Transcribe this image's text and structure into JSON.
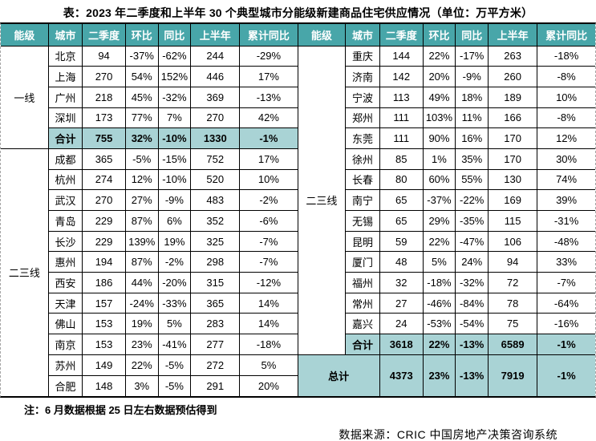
{
  "title": "表：2023 年二季度和上半年 30 个典型城市分能级新建商品住宅供应情况（单位：万平方米）",
  "note": "注：6 月数据根据 25 日左右数据预估得到",
  "source": "数据来源：CRIC 中国房地产决策咨询系统",
  "colors": {
    "header_bg": "#48A6A9",
    "header_text": "#FFFFFF",
    "highlight_bg": "#A9D3D5",
    "border": "#000000",
    "page_edge_dash": "#A6A6A6"
  },
  "chart_data": {
    "type": "table",
    "unit": "万平方米",
    "columns": [
      "能级",
      "城市",
      "二季度",
      "环比",
      "同比",
      "上半年",
      "累计同比"
    ],
    "left": {
      "groups": [
        {
          "tier": "一线",
          "rows": [
            {
              "city": "北京",
              "values": [
                "94",
                "-37%",
                "-62%",
                "244",
                "-29%"
              ]
            },
            {
              "city": "上海",
              "values": [
                "270",
                "54%",
                "152%",
                "446",
                "17%"
              ]
            },
            {
              "city": "广州",
              "values": [
                "218",
                "45%",
                "-32%",
                "369",
                "-13%"
              ]
            },
            {
              "city": "深圳",
              "values": [
                "173",
                "77%",
                "7%",
                "270",
                "42%"
              ]
            },
            {
              "city": "合计",
              "values": [
                "755",
                "32%",
                "-10%",
                "1330",
                "-1%"
              ],
              "highlight": true
            }
          ]
        },
        {
          "tier": "二三线",
          "rows": [
            {
              "city": "成都",
              "values": [
                "365",
                "-5%",
                "-15%",
                "752",
                "17%"
              ]
            },
            {
              "city": "杭州",
              "values": [
                "274",
                "12%",
                "-10%",
                "520",
                "10%"
              ]
            },
            {
              "city": "武汉",
              "values": [
                "270",
                "27%",
                "-9%",
                "483",
                "-2%"
              ]
            },
            {
              "city": "青岛",
              "values": [
                "229",
                "87%",
                "6%",
                "352",
                "-6%"
              ]
            },
            {
              "city": "长沙",
              "values": [
                "229",
                "139%",
                "19%",
                "325",
                "-7%"
              ]
            },
            {
              "city": "惠州",
              "values": [
                "194",
                "87%",
                "-2%",
                "298",
                "-7%"
              ]
            },
            {
              "city": "西安",
              "values": [
                "186",
                "44%",
                "-20%",
                "315",
                "-12%"
              ]
            },
            {
              "city": "天津",
              "values": [
                "157",
                "-24%",
                "-33%",
                "365",
                "14%"
              ]
            },
            {
              "city": "佛山",
              "values": [
                "153",
                "19%",
                "5%",
                "283",
                "14%"
              ]
            },
            {
              "city": "南京",
              "values": [
                "153",
                "23%",
                "-41%",
                "277",
                "-18%"
              ]
            },
            {
              "city": "苏州",
              "values": [
                "149",
                "22%",
                "-5%",
                "272",
                "5%"
              ]
            },
            {
              "city": "合肥",
              "values": [
                "148",
                "3%",
                "-5%",
                "291",
                "20%"
              ]
            }
          ]
        }
      ]
    },
    "right": {
      "groups": [
        {
          "tier": "二三线",
          "rows": [
            {
              "city": "重庆",
              "values": [
                "144",
                "22%",
                "-17%",
                "263",
                "-18%"
              ]
            },
            {
              "city": "济南",
              "values": [
                "142",
                "20%",
                "-9%",
                "260",
                "-8%"
              ]
            },
            {
              "city": "宁波",
              "values": [
                "113",
                "49%",
                "18%",
                "189",
                "10%"
              ]
            },
            {
              "city": "郑州",
              "values": [
                "111",
                "103%",
                "11%",
                "166",
                "-8%"
              ]
            },
            {
              "city": "东莞",
              "values": [
                "111",
                "90%",
                "16%",
                "170",
                "12%"
              ]
            },
            {
              "city": "徐州",
              "values": [
                "85",
                "1%",
                "35%",
                "170",
                "30%"
              ]
            },
            {
              "city": "长春",
              "values": [
                "80",
                "60%",
                "55%",
                "130",
                "74%"
              ]
            },
            {
              "city": "南宁",
              "values": [
                "65",
                "-37%",
                "-22%",
                "169",
                "39%"
              ]
            },
            {
              "city": "无锡",
              "values": [
                "65",
                "29%",
                "-35%",
                "115",
                "-31%"
              ]
            },
            {
              "city": "昆明",
              "values": [
                "59",
                "22%",
                "-47%",
                "106",
                "-48%"
              ]
            },
            {
              "city": "厦门",
              "values": [
                "48",
                "5%",
                "24%",
                "94",
                "33%"
              ]
            },
            {
              "city": "福州",
              "values": [
                "32",
                "-18%",
                "-32%",
                "72",
                "-7%"
              ]
            },
            {
              "city": "常州",
              "values": [
                "27",
                "-46%",
                "-84%",
                "78",
                "-64%"
              ]
            },
            {
              "city": "嘉兴",
              "values": [
                "24",
                "-53%",
                "-54%",
                "75",
                "-16%"
              ]
            },
            {
              "city": "合计",
              "values": [
                "3618",
                "22%",
                "-13%",
                "6589",
                "-1%"
              ],
              "highlight": true
            }
          ]
        }
      ],
      "grand_total": {
        "label": "总计",
        "values": [
          "4373",
          "23%",
          "-13%",
          "7919",
          "-1%"
        ],
        "highlight": true
      }
    }
  }
}
